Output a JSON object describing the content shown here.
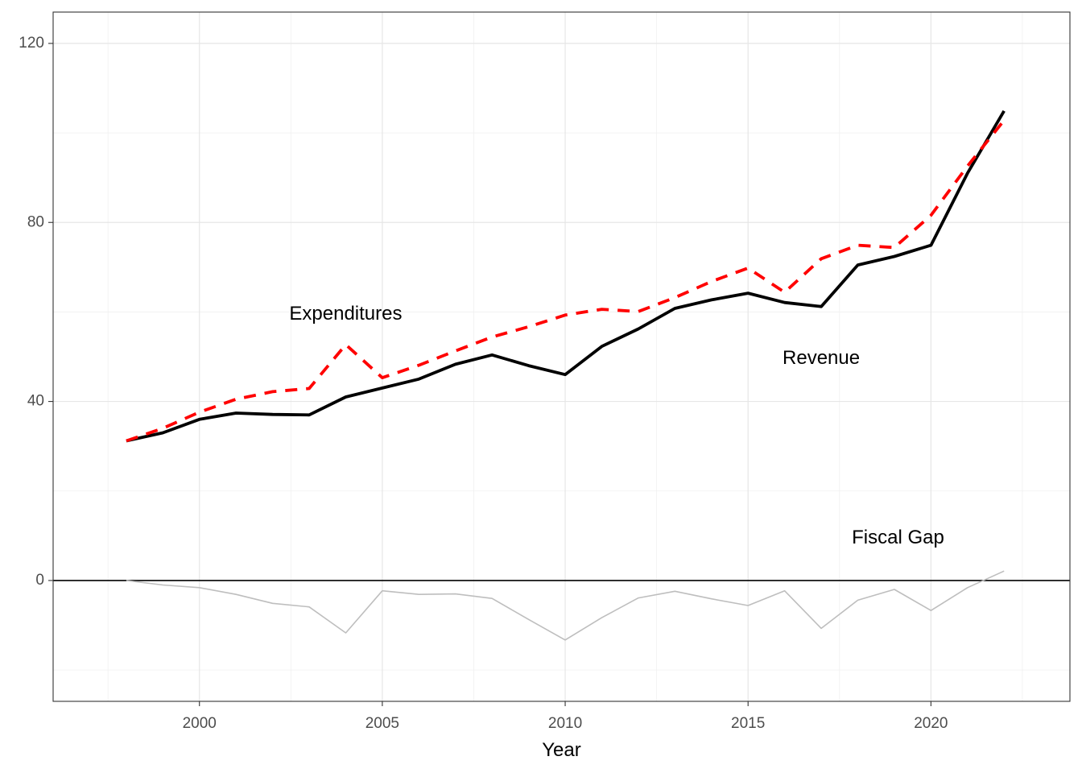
{
  "chart_data": {
    "type": "line",
    "title": "",
    "xlabel": "Year",
    "ylabel": "",
    "xlim": [
      1996.0,
      2023.8
    ],
    "ylim": [
      -27,
      127
    ],
    "x_ticks": [
      2000,
      2005,
      2010,
      2015,
      2020
    ],
    "y_ticks": [
      0,
      40,
      80,
      120
    ],
    "grid": true,
    "legend": "none",
    "x": [
      1998,
      1999,
      2000,
      2001,
      2002,
      2003,
      2004,
      2005,
      2006,
      2007,
      2008,
      2009,
      2010,
      2011,
      2012,
      2013,
      2014,
      2015,
      2016,
      2017,
      2018,
      2019,
      2020,
      2021,
      2022
    ],
    "series": [
      {
        "role": "revenue",
        "color": "#000000",
        "style": "solid",
        "values": [
          31.2,
          33.0,
          36.0,
          37.4,
          37.1,
          37.0,
          41.0,
          43.0,
          45.0,
          48.3,
          50.4,
          48.0,
          46.0,
          52.3,
          56.2,
          60.8,
          62.7,
          64.2,
          62.1,
          61.2,
          70.5,
          72.4,
          74.9,
          91.0,
          104.9
        ]
      },
      {
        "role": "expenditures",
        "color": "#ff0000",
        "style": "dashed",
        "values": [
          31.2,
          34.0,
          37.6,
          40.5,
          42.2,
          42.9,
          52.7,
          45.3,
          48.1,
          51.3,
          54.4,
          56.7,
          59.3,
          60.6,
          60.1,
          63.2,
          66.8,
          69.8,
          64.4,
          71.9,
          74.9,
          74.4,
          81.6,
          92.6,
          102.8
        ]
      },
      {
        "role": "fiscal-gap",
        "color": "#bebebe",
        "style": "solid",
        "values": [
          0.0,
          -1.0,
          -1.6,
          -3.1,
          -5.1,
          -5.9,
          -11.7,
          -2.3,
          -3.1,
          -3.0,
          -4.0,
          -8.7,
          -13.3,
          -8.3,
          -3.9,
          -2.4,
          -4.1,
          -5.6,
          -2.3,
          -10.7,
          -4.4,
          -2.0,
          -6.7,
          -1.6,
          2.1
        ]
      }
    ],
    "annotations": [
      {
        "text": "Expenditures",
        "x": 2004.0,
        "y": 59.4
      },
      {
        "text": "Revenue",
        "x": 2017.0,
        "y": 49.5
      },
      {
        "text": "Fiscal Gap",
        "x": 2019.1,
        "y": 9.4
      }
    ],
    "hline": 0
  }
}
